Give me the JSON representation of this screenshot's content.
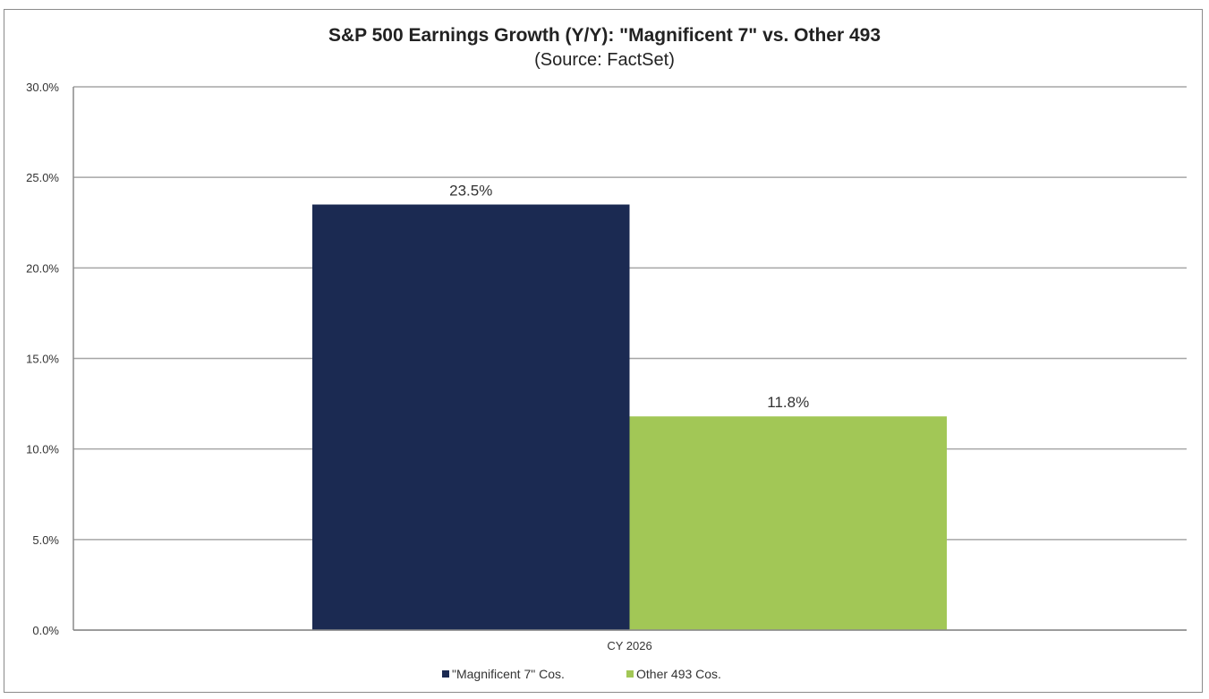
{
  "chart_data": {
    "type": "bar",
    "title": "S&P 500 Earnings Growth (Y/Y): \"Magnificent 7\" vs. Other 493",
    "subtitle": "(Source: FactSet)",
    "categories": [
      "CY 2026"
    ],
    "series": [
      {
        "name": "\"Magnificent 7\" Cos.",
        "values": [
          23.5
        ],
        "labels": [
          "23.5%"
        ],
        "color": "#1b2a52"
      },
      {
        "name": "Other 493 Cos.",
        "values": [
          11.8
        ],
        "labels": [
          "11.8%"
        ],
        "color": "#a2c756"
      }
    ],
    "ylim": [
      0,
      30
    ],
    "yticks": [
      0,
      5,
      10,
      15,
      20,
      25,
      30
    ],
    "ytick_labels": [
      "0.0%",
      "5.0%",
      "10.0%",
      "15.0%",
      "20.0%",
      "25.0%",
      "30.0%"
    ],
    "xlabel": "",
    "ylabel": "",
    "grid": true,
    "legend": "bottom"
  }
}
